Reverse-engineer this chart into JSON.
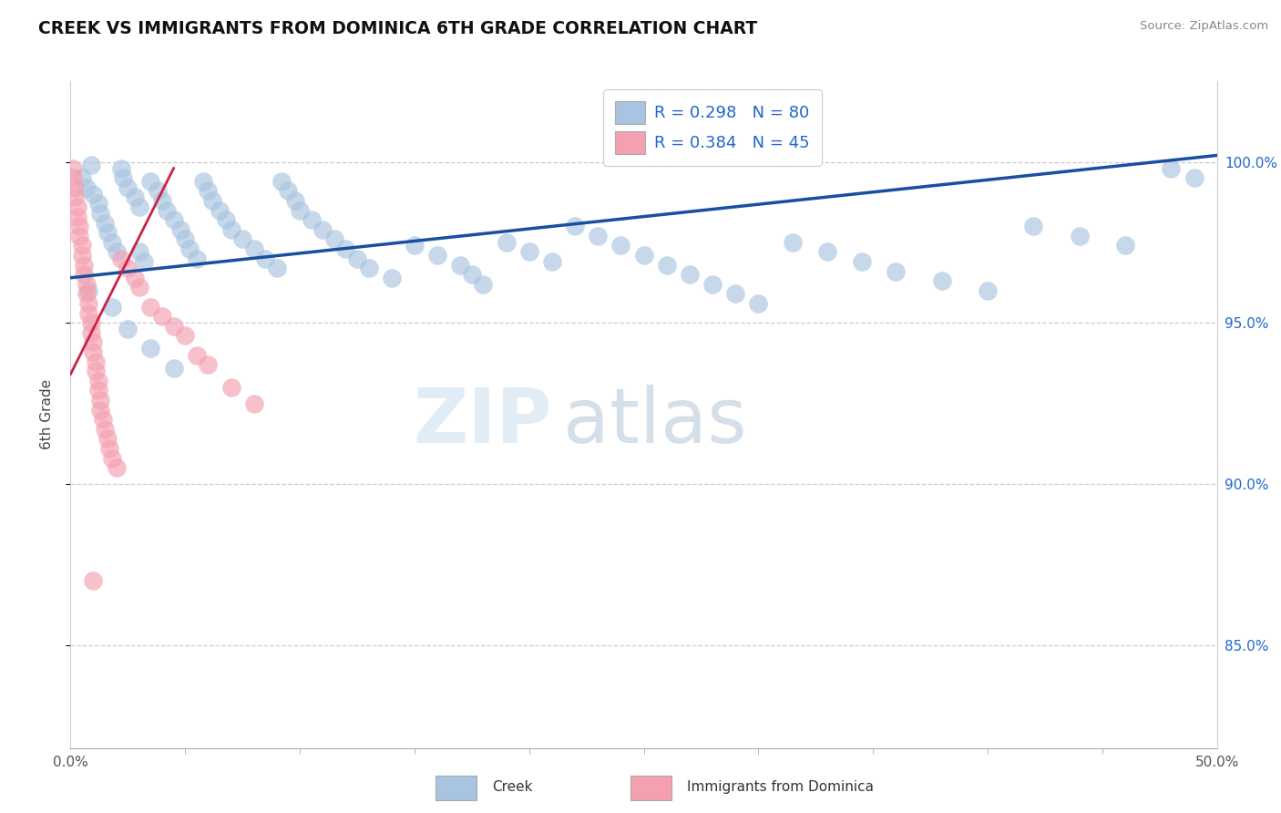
{
  "title": "CREEK VS IMMIGRANTS FROM DOMINICA 6TH GRADE CORRELATION CHART",
  "source": "Source: ZipAtlas.com",
  "ylabel": "6th Grade",
  "ytick_labels": [
    "85.0%",
    "90.0%",
    "95.0%",
    "100.0%"
  ],
  "ytick_values": [
    0.85,
    0.9,
    0.95,
    1.0
  ],
  "legend_creek": "Creek",
  "legend_dominica": "Immigrants from Dominica",
  "blue_color": "#a8c4e0",
  "pink_color": "#f4a0b0",
  "blue_line_color": "#1a4fa0",
  "pink_line_color": "#cc2244",
  "blue_line_x": [
    0.0,
    0.5
  ],
  "blue_line_y": [
    0.964,
    1.002
  ],
  "pink_line_x": [
    0.0,
    0.045
  ],
  "pink_line_y": [
    0.934,
    0.998
  ],
  "xmin": 0.0,
  "xmax": 0.5,
  "ymin": 0.818,
  "ymax": 1.025,
  "creek_x": [
    0.005,
    0.007,
    0.009,
    0.01,
    0.012,
    0.013,
    0.015,
    0.016,
    0.018,
    0.02,
    0.022,
    0.023,
    0.025,
    0.028,
    0.03,
    0.03,
    0.032,
    0.035,
    0.038,
    0.04,
    0.042,
    0.045,
    0.048,
    0.05,
    0.052,
    0.055,
    0.058,
    0.06,
    0.062,
    0.065,
    0.068,
    0.07,
    0.075,
    0.08,
    0.085,
    0.09,
    0.092,
    0.095,
    0.098,
    0.1,
    0.105,
    0.11,
    0.115,
    0.12,
    0.125,
    0.13,
    0.14,
    0.15,
    0.16,
    0.17,
    0.175,
    0.18,
    0.19,
    0.2,
    0.21,
    0.22,
    0.23,
    0.24,
    0.25,
    0.26,
    0.27,
    0.28,
    0.29,
    0.3,
    0.315,
    0.33,
    0.345,
    0.36,
    0.38,
    0.4,
    0.42,
    0.44,
    0.46,
    0.48,
    0.49,
    0.008,
    0.018,
    0.025,
    0.035,
    0.045
  ],
  "creek_y": [
    0.995,
    0.992,
    0.999,
    0.99,
    0.987,
    0.984,
    0.981,
    0.978,
    0.975,
    0.972,
    0.998,
    0.995,
    0.992,
    0.989,
    0.986,
    0.972,
    0.969,
    0.994,
    0.991,
    0.988,
    0.985,
    0.982,
    0.979,
    0.976,
    0.973,
    0.97,
    0.994,
    0.991,
    0.988,
    0.985,
    0.982,
    0.979,
    0.976,
    0.973,
    0.97,
    0.967,
    0.994,
    0.991,
    0.988,
    0.985,
    0.982,
    0.979,
    0.976,
    0.973,
    0.97,
    0.967,
    0.964,
    0.974,
    0.971,
    0.968,
    0.965,
    0.962,
    0.975,
    0.972,
    0.969,
    0.98,
    0.977,
    0.974,
    0.971,
    0.968,
    0.965,
    0.962,
    0.959,
    0.956,
    0.975,
    0.972,
    0.969,
    0.966,
    0.963,
    0.96,
    0.98,
    0.977,
    0.974,
    0.998,
    0.995,
    0.96,
    0.955,
    0.948,
    0.942,
    0.936
  ],
  "dom_x": [
    0.001,
    0.001,
    0.002,
    0.002,
    0.003,
    0.003,
    0.004,
    0.004,
    0.005,
    0.005,
    0.006,
    0.006,
    0.007,
    0.007,
    0.008,
    0.008,
    0.009,
    0.009,
    0.01,
    0.01,
    0.011,
    0.011,
    0.012,
    0.012,
    0.013,
    0.013,
    0.014,
    0.015,
    0.016,
    0.017,
    0.018,
    0.02,
    0.022,
    0.025,
    0.028,
    0.03,
    0.035,
    0.04,
    0.045,
    0.05,
    0.055,
    0.06,
    0.07,
    0.08,
    0.01
  ],
  "dom_y": [
    0.998,
    0.995,
    0.992,
    0.989,
    0.986,
    0.983,
    0.98,
    0.977,
    0.974,
    0.971,
    0.968,
    0.965,
    0.962,
    0.959,
    0.956,
    0.953,
    0.95,
    0.947,
    0.944,
    0.941,
    0.938,
    0.935,
    0.932,
    0.929,
    0.926,
    0.923,
    0.92,
    0.917,
    0.914,
    0.911,
    0.908,
    0.905,
    0.97,
    0.967,
    0.964,
    0.961,
    0.955,
    0.952,
    0.949,
    0.946,
    0.94,
    0.937,
    0.93,
    0.925,
    0.87
  ]
}
